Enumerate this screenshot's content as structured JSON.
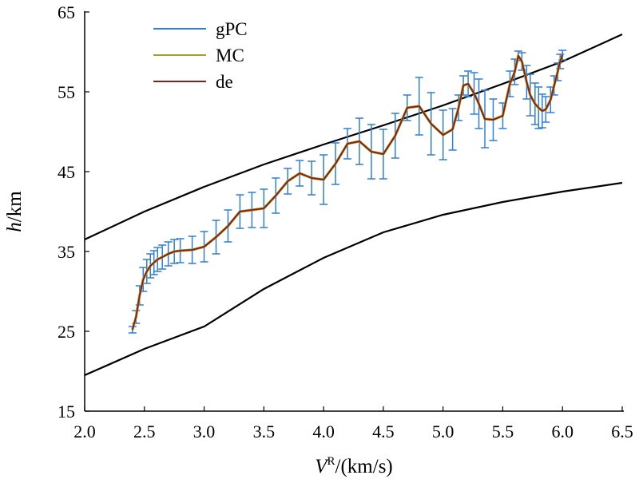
{
  "chart_data": {
    "type": "line",
    "title": "",
    "xlabel": {
      "main": "V",
      "sup": "R",
      "rest": "/(km/s)"
    },
    "ylabel": {
      "main": "h",
      "rest": "/km"
    },
    "xlim": [
      2.0,
      6.5
    ],
    "ylim": [
      15,
      65
    ],
    "xticks": [
      "2.0",
      "2.5",
      "3.0",
      "3.5",
      "4.0",
      "4.5",
      "5.0",
      "5.5",
      "6.0",
      "6.5"
    ],
    "yticks": [
      "15",
      "25",
      "35",
      "45",
      "55",
      "65"
    ],
    "legend": {
      "position": "top-left",
      "entries": [
        "gPC",
        "MC",
        "de"
      ]
    },
    "colors": {
      "gPC": "#2f7fd6",
      "MC": "#a8a020",
      "de": "#8b1a1a",
      "bounds": "#000000"
    },
    "bounds": {
      "upper": {
        "x": [
          2.0,
          2.5,
          3.0,
          3.5,
          4.0,
          4.5,
          5.0,
          5.5,
          6.0,
          6.5
        ],
        "y": [
          36.5,
          40.0,
          43.1,
          45.9,
          48.4,
          50.8,
          53.3,
          56.0,
          58.8,
          62.2
        ]
      },
      "lower": {
        "x": [
          2.0,
          2.5,
          3.0,
          3.5,
          4.0,
          4.5,
          5.0,
          5.5,
          6.0,
          6.5
        ],
        "y": [
          19.5,
          22.8,
          25.6,
          30.3,
          34.2,
          37.4,
          39.6,
          41.2,
          42.5,
          43.6
        ]
      }
    },
    "series": [
      {
        "name": "gPC",
        "x": [
          2.4,
          2.43,
          2.46,
          2.49,
          2.52,
          2.55,
          2.58,
          2.61,
          2.65,
          2.7,
          2.75,
          2.8,
          2.9,
          3.0,
          3.1,
          3.2,
          3.3,
          3.4,
          3.5,
          3.6,
          3.7,
          3.8,
          3.9,
          4.0,
          4.1,
          4.2,
          4.3,
          4.4,
          4.5,
          4.6,
          4.7,
          4.8,
          4.9,
          5.0,
          5.08,
          5.13,
          5.17,
          5.21,
          5.26,
          5.3,
          5.35,
          5.42,
          5.5,
          5.56,
          5.6,
          5.63,
          5.66,
          5.7,
          5.73,
          5.77,
          5.8,
          5.83,
          5.86,
          5.9,
          5.93,
          5.96,
          5.98,
          6.0
        ],
        "y": [
          25.2,
          26.8,
          29.5,
          31.5,
          32.5,
          33.2,
          33.6,
          34.0,
          34.3,
          34.7,
          35.0,
          35.1,
          35.2,
          35.6,
          36.8,
          38.2,
          40.0,
          40.2,
          40.4,
          42.0,
          43.8,
          44.8,
          44.2,
          44.0,
          46.0,
          48.5,
          48.8,
          47.5,
          47.2,
          49.5,
          53.0,
          53.2,
          51.0,
          49.6,
          50.3,
          53.0,
          55.8,
          56.0,
          54.8,
          53.5,
          51.6,
          51.5,
          52.0,
          56.0,
          57.5,
          59.5,
          58.8,
          56.2,
          54.6,
          53.5,
          53.0,
          52.6,
          52.8,
          54.0,
          55.8,
          57.5,
          58.8,
          59.6
        ],
        "err": [
          0.4,
          0.8,
          1.2,
          1.5,
          1.5,
          1.5,
          1.5,
          1.5,
          1.5,
          1.5,
          1.5,
          1.5,
          1.7,
          1.9,
          2.1,
          2.0,
          2.1,
          2.2,
          2.4,
          2.2,
          1.6,
          1.6,
          2.1,
          3.1,
          2.6,
          1.9,
          2.9,
          3.4,
          3.1,
          2.8,
          1.6,
          3.6,
          3.9,
          3.1,
          2.6,
          1.6,
          1.2,
          1.6,
          2.6,
          3.1,
          3.6,
          2.6,
          1.6,
          1.6,
          1.6,
          0.6,
          1.1,
          2.1,
          2.6,
          2.6,
          2.6,
          2.1,
          1.6,
          1.6,
          1.2,
          1.1,
          0.9,
          0.6
        ]
      },
      {
        "name": "MC",
        "x": [
          2.4,
          2.43,
          2.46,
          2.49,
          2.52,
          2.55,
          2.58,
          2.61,
          2.65,
          2.7,
          2.75,
          2.8,
          2.9,
          3.0,
          3.1,
          3.2,
          3.3,
          3.4,
          3.5,
          3.6,
          3.7,
          3.8,
          3.9,
          4.0,
          4.1,
          4.2,
          4.3,
          4.4,
          4.5,
          4.6,
          4.7,
          4.8,
          4.9,
          5.0,
          5.08,
          5.13,
          5.17,
          5.21,
          5.26,
          5.3,
          5.35,
          5.42,
          5.5,
          5.56,
          5.6,
          5.63,
          5.66,
          5.7,
          5.73,
          5.77,
          5.8,
          5.83,
          5.86,
          5.9,
          5.93,
          5.96,
          5.98,
          6.0
        ],
        "y": [
          25.2,
          26.8,
          29.5,
          31.5,
          32.5,
          33.2,
          33.6,
          34.0,
          34.3,
          34.7,
          35.0,
          35.1,
          35.2,
          35.6,
          36.8,
          38.2,
          40.0,
          40.2,
          40.4,
          42.0,
          43.8,
          44.8,
          44.2,
          44.0,
          46.0,
          48.5,
          48.8,
          47.5,
          47.2,
          49.5,
          53.0,
          53.2,
          51.0,
          49.6,
          50.3,
          53.0,
          55.8,
          56.0,
          54.8,
          53.5,
          51.6,
          51.5,
          52.0,
          56.0,
          57.5,
          59.5,
          58.8,
          56.2,
          54.6,
          53.5,
          53.0,
          52.6,
          52.8,
          54.0,
          55.8,
          57.5,
          58.8,
          59.6
        ]
      },
      {
        "name": "de",
        "x": [
          2.4,
          2.43,
          2.46,
          2.49,
          2.52,
          2.55,
          2.58,
          2.61,
          2.65,
          2.7,
          2.75,
          2.8,
          2.9,
          3.0,
          3.1,
          3.2,
          3.3,
          3.4,
          3.5,
          3.6,
          3.7,
          3.8,
          3.9,
          4.0,
          4.1,
          4.2,
          4.3,
          4.4,
          4.5,
          4.6,
          4.7,
          4.8,
          4.9,
          5.0,
          5.08,
          5.13,
          5.17,
          5.21,
          5.26,
          5.3,
          5.35,
          5.42,
          5.5,
          5.56,
          5.6,
          5.63,
          5.66,
          5.7,
          5.73,
          5.77,
          5.8,
          5.83,
          5.86,
          5.9,
          5.93,
          5.96,
          5.98,
          6.0
        ],
        "y": [
          25.2,
          26.8,
          29.5,
          31.5,
          32.5,
          33.2,
          33.6,
          34.0,
          34.3,
          34.7,
          35.0,
          35.1,
          35.2,
          35.6,
          36.8,
          38.2,
          40.0,
          40.2,
          40.4,
          42.0,
          43.8,
          44.8,
          44.2,
          44.0,
          46.0,
          48.5,
          48.8,
          47.5,
          47.2,
          49.5,
          53.0,
          53.2,
          51.0,
          49.6,
          50.3,
          53.0,
          55.8,
          56.0,
          54.8,
          53.5,
          51.6,
          51.5,
          52.0,
          56.0,
          57.5,
          59.5,
          58.8,
          56.2,
          54.6,
          53.5,
          53.0,
          52.6,
          52.8,
          54.0,
          55.8,
          57.5,
          58.8,
          59.6
        ]
      }
    ]
  }
}
